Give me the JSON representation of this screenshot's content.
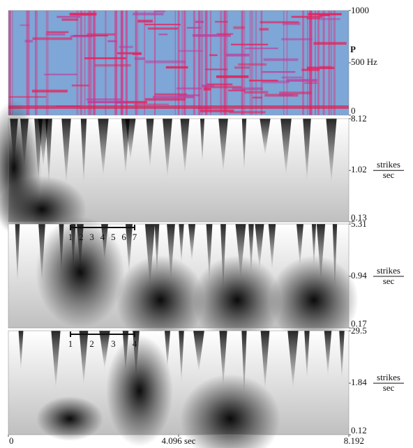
{
  "chart_data": [
    {
      "type": "heatmap",
      "ylim": [
        0,
        1000
      ],
      "yticks": [
        0,
        {
          "value": 500,
          "label": "500 Hz"
        },
        1000
      ],
      "annotation": "P"
    },
    {
      "type": "heatmap",
      "log": true,
      "ylim": [
        0.13,
        8.12
      ],
      "yticks": [
        0.13,
        1.02,
        8.12
      ],
      "ylabel": {
        "numerator": "strikes",
        "denominator": "sec"
      }
    },
    {
      "type": "heatmap",
      "log": true,
      "ylim": [
        0.17,
        5.31
      ],
      "yticks": [
        0.17,
        0.94,
        5.31
      ],
      "ylabel": {
        "numerator": "strikes",
        "denominator": "sec"
      },
      "scale_bar": [
        "1",
        "2",
        "3",
        "4",
        "5",
        "6",
        "7"
      ]
    },
    {
      "type": "heatmap",
      "log": true,
      "ylim": [
        0.12,
        29.5
      ],
      "yticks": [
        0.12,
        1.84,
        29.5
      ],
      "ylabel": {
        "numerator": "strikes",
        "denominator": "sec"
      },
      "scale_bar": [
        "1",
        "2",
        "3",
        "4"
      ],
      "xlim": [
        0,
        8.192
      ],
      "xticks": [
        0,
        {
          "value": 4.096,
          "label": "4.096 sec"
        },
        8.192
      ]
    }
  ]
}
